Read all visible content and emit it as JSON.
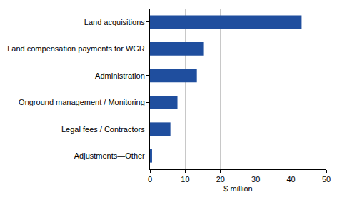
{
  "chart_data": {
    "type": "bar",
    "orientation": "horizontal",
    "categories": [
      "Land acquisitions",
      "Land compensation payments for WGR",
      "Administration",
      "Onground management / Monitoring",
      "Legal fees / Contractors",
      "Adjustments—Other"
    ],
    "values": [
      43,
      15.3,
      13.3,
      7.8,
      5.8,
      0.6
    ],
    "color": "#1f4e9e",
    "x_label": "$ million",
    "xlim": [
      0,
      50
    ],
    "xticks": [
      0,
      10,
      20,
      30,
      40,
      50
    ],
    "grid": true
  }
}
